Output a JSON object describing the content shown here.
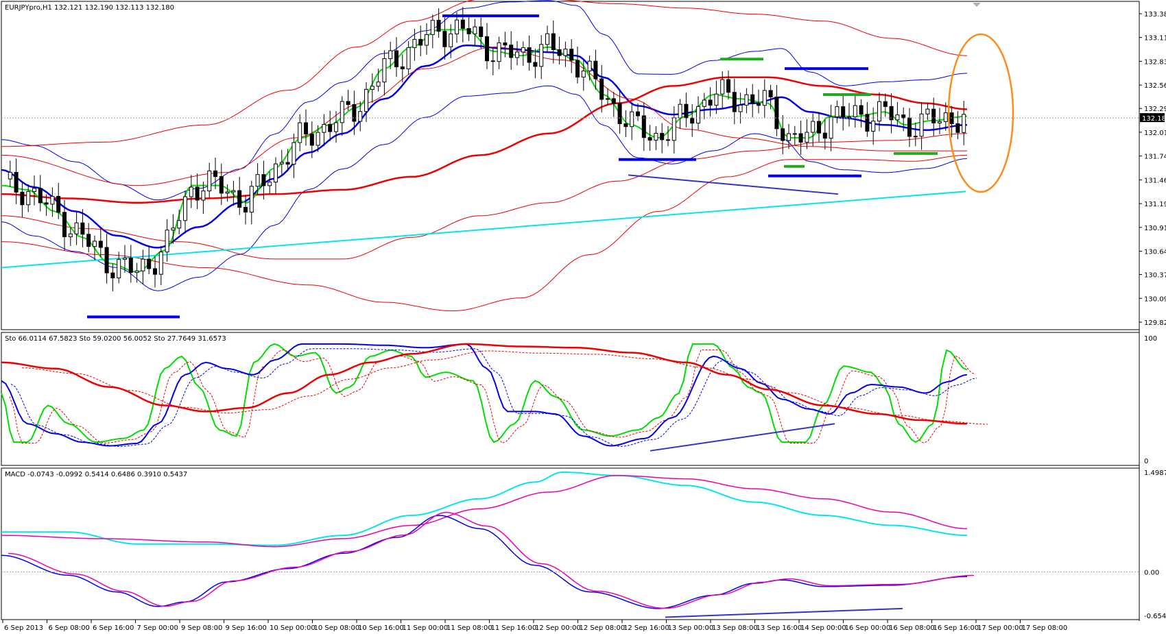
{
  "chart_data": [
    {
      "type": "candlestick",
      "panel": "price",
      "header": "EURJPYpro,H1  132.121 132.190 132.113 132.180",
      "y_ticks": [
        "133.385",
        "133.110",
        "132.835",
        "132.560",
        "132.290",
        "132.015",
        "131.740",
        "131.465",
        "131.190",
        "130.915",
        "130.640",
        "130.370",
        "130.095",
        "129.820"
      ],
      "ylim": [
        129.76,
        133.58
      ],
      "current_price": "132.180",
      "grid": false
    },
    {
      "type": "line",
      "panel": "stochastic",
      "header": "Sto 66.0114 67.5823  Sto 59.0200 56.0052  Sto 27.7649 31.6573",
      "y_ticks": [
        "100",
        "0"
      ],
      "ylim": [
        0,
        100
      ]
    },
    {
      "type": "line",
      "panel": "macd",
      "header": "MACD -0.0743 -0.0992 0.5414 0.6486 0.3910 0.5437",
      "y_ticks": [
        "1.4987",
        "0.00",
        "-0.6545"
      ],
      "ylim": [
        -0.6545,
        1.4987
      ]
    }
  ],
  "x_ticks": [
    "6 Sep 2013",
    "6 Sep 08:00",
    "6 Sep 16:00",
    "7 Sep 00:00",
    "9 Sep 08:00",
    "9 Sep 16:00",
    "10 Sep 00:00",
    "10 Sep 08:00",
    "10 Sep 16:00",
    "11 Sep 00:00",
    "11 Sep 08:00",
    "11 Sep 16:00",
    "12 Sep 00:00",
    "12 Sep 08:00",
    "12 Sep 16:00",
    "13 Sep 00:00",
    "13 Sep 08:00",
    "13 Sep 16:00",
    "14 Sep 00:00",
    "16 Sep 00:00",
    "16 Sep 08:00",
    "16 Sep 16:00",
    "17 Sep 00:00",
    "17 Sep 08:00"
  ],
  "colors": {
    "up_candle": "#ffffff",
    "down_candle": "#000000",
    "fast_ma": "#00dd00",
    "mid_ma": "#0000ee",
    "slow_ma": "#ee0000",
    "long_trend": "#00e5ee",
    "macd_main": "#ee00aa",
    "highlight": "#ff8c1a"
  }
}
